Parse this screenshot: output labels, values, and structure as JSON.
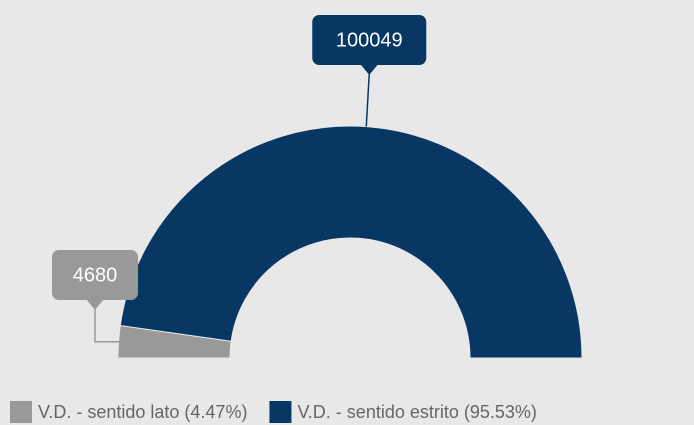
{
  "chart_data": {
    "type": "semi-donut",
    "categories": [
      "V.D. - sentido lato (4.47%)",
      "V.D. - sentido estrito (95.53%)"
    ],
    "values": [
      4680,
      100049
    ],
    "colors": [
      "#999999",
      "#083763"
    ]
  }
}
